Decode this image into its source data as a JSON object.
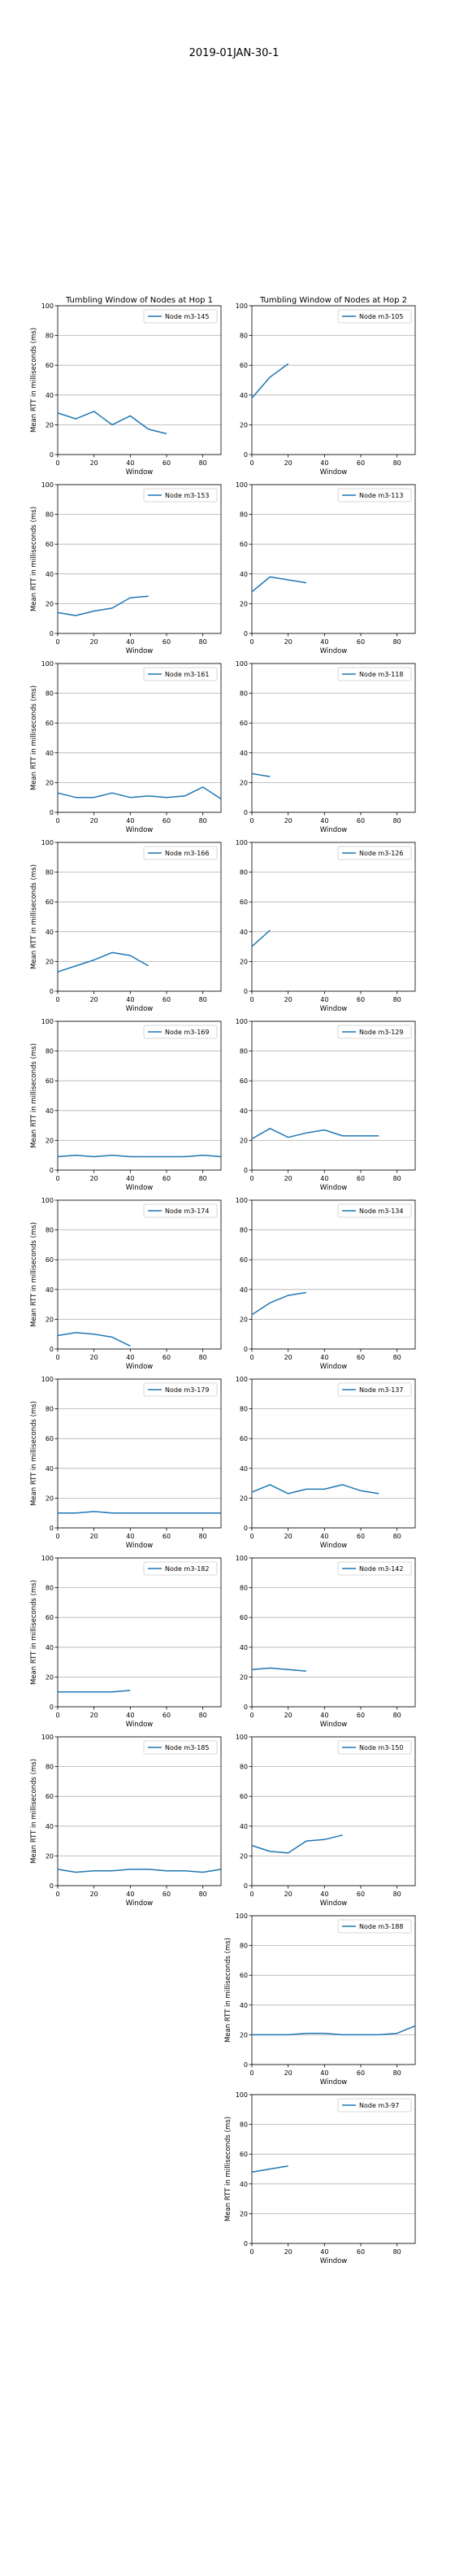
{
  "figure": {
    "title": "2019-01JAN-30-1"
  },
  "chart_data": [
    {
      "type": "line",
      "title": "Tumbling Window of Nodes at Hop 1",
      "xlabel": "Window",
      "ylabel": "Mean RTT in milliseconds (ms)",
      "xlim": [
        0,
        90
      ],
      "ylim": [
        0,
        100
      ],
      "xticks": [
        0,
        20,
        40,
        60,
        80
      ],
      "yticks": [
        0,
        20,
        40,
        60,
        80,
        100
      ],
      "grid": true,
      "legend": "upper right",
      "series": [
        {
          "name": "Node m3-145",
          "x": [
            0,
            10,
            20,
            30,
            40,
            50,
            60
          ],
          "y": [
            28,
            24,
            29,
            20,
            26,
            17,
            14
          ]
        }
      ]
    },
    {
      "type": "line",
      "title": "Tumbling Window of Nodes at Hop 2",
      "xlabel": "Window",
      "ylabel": "",
      "xlim": [
        0,
        90
      ],
      "ylim": [
        0,
        100
      ],
      "xticks": [
        0,
        20,
        40,
        60,
        80
      ],
      "yticks": [
        0,
        20,
        40,
        60,
        80,
        100
      ],
      "grid": true,
      "legend": "upper right",
      "series": [
        {
          "name": "Node m3-105",
          "x": [
            0,
            10,
            20
          ],
          "y": [
            38,
            52,
            61
          ]
        }
      ]
    },
    {
      "type": "line",
      "title": "",
      "xlabel": "Window",
      "ylabel": "Mean RTT in milliseconds (ms)",
      "xlim": [
        0,
        90
      ],
      "ylim": [
        0,
        100
      ],
      "xticks": [
        0,
        20,
        40,
        60,
        80
      ],
      "yticks": [
        0,
        20,
        40,
        60,
        80,
        100
      ],
      "grid": true,
      "legend": "upper right",
      "series": [
        {
          "name": "Node m3-153",
          "x": [
            0,
            10,
            20,
            30,
            40,
            50
          ],
          "y": [
            14,
            12,
            15,
            17,
            24,
            25
          ]
        }
      ]
    },
    {
      "type": "line",
      "title": "",
      "xlabel": "Window",
      "ylabel": "",
      "xlim": [
        0,
        90
      ],
      "ylim": [
        0,
        100
      ],
      "xticks": [
        0,
        20,
        40,
        60,
        80
      ],
      "yticks": [
        0,
        20,
        40,
        60,
        80,
        100
      ],
      "grid": true,
      "legend": "upper right",
      "series": [
        {
          "name": "Node m3-113",
          "x": [
            0,
            10,
            20,
            30
          ],
          "y": [
            28,
            38,
            36,
            34
          ]
        }
      ]
    },
    {
      "type": "line",
      "title": "",
      "xlabel": "Window",
      "ylabel": "Mean RTT in milliseconds (ms)",
      "xlim": [
        0,
        90
      ],
      "ylim": [
        0,
        100
      ],
      "xticks": [
        0,
        20,
        40,
        60,
        80
      ],
      "yticks": [
        0,
        20,
        40,
        60,
        80,
        100
      ],
      "grid": true,
      "legend": "upper right",
      "series": [
        {
          "name": "Node m3-161",
          "x": [
            0,
            10,
            20,
            30,
            40,
            50,
            60,
            70,
            80,
            90
          ],
          "y": [
            13,
            10,
            10,
            13,
            10,
            11,
            10,
            11,
            17,
            9
          ]
        }
      ]
    },
    {
      "type": "line",
      "title": "",
      "xlabel": "Window",
      "ylabel": "",
      "xlim": [
        0,
        90
      ],
      "ylim": [
        0,
        100
      ],
      "xticks": [
        0,
        20,
        40,
        60,
        80
      ],
      "yticks": [
        0,
        20,
        40,
        60,
        80,
        100
      ],
      "grid": true,
      "legend": "upper right",
      "series": [
        {
          "name": "Node m3-118",
          "x": [
            0,
            10
          ],
          "y": [
            26,
            24
          ]
        }
      ]
    },
    {
      "type": "line",
      "title": "",
      "xlabel": "Window",
      "ylabel": "Mean RTT in milliseconds (ms)",
      "xlim": [
        0,
        90
      ],
      "ylim": [
        0,
        100
      ],
      "xticks": [
        0,
        20,
        40,
        60,
        80
      ],
      "yticks": [
        0,
        20,
        40,
        60,
        80,
        100
      ],
      "grid": true,
      "legend": "upper right",
      "series": [
        {
          "name": "Node m3-166",
          "x": [
            0,
            10,
            20,
            30,
            40,
            50
          ],
          "y": [
            13,
            17,
            21,
            26,
            24,
            17
          ]
        }
      ]
    },
    {
      "type": "line",
      "title": "",
      "xlabel": "Window",
      "ylabel": "",
      "xlim": [
        0,
        90
      ],
      "ylim": [
        0,
        100
      ],
      "xticks": [
        0,
        20,
        40,
        60,
        80
      ],
      "yticks": [
        0,
        20,
        40,
        60,
        80,
        100
      ],
      "grid": true,
      "legend": "upper right",
      "series": [
        {
          "name": "Node m3-126",
          "x": [
            0,
            10
          ],
          "y": [
            30,
            41
          ]
        }
      ]
    },
    {
      "type": "line",
      "title": "",
      "xlabel": "Window",
      "ylabel": "Mean RTT in milliseconds (ms)",
      "xlim": [
        0,
        90
      ],
      "ylim": [
        0,
        100
      ],
      "xticks": [
        0,
        20,
        40,
        60,
        80
      ],
      "yticks": [
        0,
        20,
        40,
        60,
        80,
        100
      ],
      "grid": true,
      "legend": "upper right",
      "series": [
        {
          "name": "Node m3-169",
          "x": [
            0,
            10,
            20,
            30,
            40,
            50,
            60,
            70,
            80,
            90
          ],
          "y": [
            9,
            10,
            9,
            10,
            9,
            9,
            9,
            9,
            10,
            9
          ]
        }
      ]
    },
    {
      "type": "line",
      "title": "",
      "xlabel": "Window",
      "ylabel": "",
      "xlim": [
        0,
        90
      ],
      "ylim": [
        0,
        100
      ],
      "xticks": [
        0,
        20,
        40,
        60,
        80
      ],
      "yticks": [
        0,
        20,
        40,
        60,
        80,
        100
      ],
      "grid": true,
      "legend": "upper right",
      "series": [
        {
          "name": "Node m3-129",
          "x": [
            0,
            10,
            20,
            30,
            40,
            50,
            60,
            70
          ],
          "y": [
            21,
            28,
            22,
            25,
            27,
            23,
            23,
            23
          ]
        }
      ]
    },
    {
      "type": "line",
      "title": "",
      "xlabel": "Window",
      "ylabel": "Mean RTT in milliseconds (ms)",
      "xlim": [
        0,
        90
      ],
      "ylim": [
        0,
        100
      ],
      "xticks": [
        0,
        20,
        40,
        60,
        80
      ],
      "yticks": [
        0,
        20,
        40,
        60,
        80,
        100
      ],
      "grid": true,
      "legend": "upper right",
      "series": [
        {
          "name": "Node m3-174",
          "x": [
            0,
            10,
            20,
            30,
            40
          ],
          "y": [
            9,
            11,
            10,
            8,
            2
          ]
        }
      ]
    },
    {
      "type": "line",
      "title": "",
      "xlabel": "Window",
      "ylabel": "",
      "xlim": [
        0,
        90
      ],
      "ylim": [
        0,
        100
      ],
      "xticks": [
        0,
        20,
        40,
        60,
        80
      ],
      "yticks": [
        0,
        20,
        40,
        60,
        80,
        100
      ],
      "grid": true,
      "legend": "upper right",
      "series": [
        {
          "name": "Node m3-134",
          "x": [
            0,
            10,
            20,
            30
          ],
          "y": [
            23,
            31,
            36,
            38
          ]
        }
      ]
    },
    {
      "type": "line",
      "title": "",
      "xlabel": "Window",
      "ylabel": "Mean RTT in milliseconds (ms)",
      "xlim": [
        0,
        90
      ],
      "ylim": [
        0,
        100
      ],
      "xticks": [
        0,
        20,
        40,
        60,
        80
      ],
      "yticks": [
        0,
        20,
        40,
        60,
        80,
        100
      ],
      "grid": true,
      "legend": "upper right",
      "series": [
        {
          "name": "Node m3-179",
          "x": [
            0,
            10,
            20,
            30,
            40,
            50,
            60,
            70,
            80,
            90
          ],
          "y": [
            10,
            10,
            11,
            10,
            10,
            10,
            10,
            10,
            10,
            10
          ]
        }
      ]
    },
    {
      "type": "line",
      "title": "",
      "xlabel": "Window",
      "ylabel": "",
      "xlim": [
        0,
        90
      ],
      "ylim": [
        0,
        100
      ],
      "xticks": [
        0,
        20,
        40,
        60,
        80
      ],
      "yticks": [
        0,
        20,
        40,
        60,
        80,
        100
      ],
      "grid": true,
      "legend": "upper right",
      "series": [
        {
          "name": "Node m3-137",
          "x": [
            0,
            10,
            20,
            30,
            40,
            50,
            60,
            70
          ],
          "y": [
            24,
            29,
            23,
            26,
            26,
            29,
            25,
            23
          ]
        }
      ]
    },
    {
      "type": "line",
      "title": "",
      "xlabel": "Window",
      "ylabel": "Mean RTT in milliseconds (ms)",
      "xlim": [
        0,
        90
      ],
      "ylim": [
        0,
        100
      ],
      "xticks": [
        0,
        20,
        40,
        60,
        80
      ],
      "yticks": [
        0,
        20,
        40,
        60,
        80,
        100
      ],
      "grid": true,
      "legend": "upper right",
      "series": [
        {
          "name": "Node m3-182",
          "x": [
            0,
            10,
            20,
            30,
            40
          ],
          "y": [
            10,
            10,
            10,
            10,
            11
          ]
        }
      ]
    },
    {
      "type": "line",
      "title": "",
      "xlabel": "Window",
      "ylabel": "",
      "xlim": [
        0,
        90
      ],
      "ylim": [
        0,
        100
      ],
      "xticks": [
        0,
        20,
        40,
        60,
        80
      ],
      "yticks": [
        0,
        20,
        40,
        60,
        80,
        100
      ],
      "grid": true,
      "legend": "upper right",
      "series": [
        {
          "name": "Node m3-142",
          "x": [
            0,
            10,
            20,
            30
          ],
          "y": [
            25,
            26,
            25,
            24
          ]
        }
      ]
    },
    {
      "type": "line",
      "title": "",
      "xlabel": "Window",
      "ylabel": "Mean RTT in milliseconds (ms)",
      "xlim": [
        0,
        90
      ],
      "ylim": [
        0,
        100
      ],
      "xticks": [
        0,
        20,
        40,
        60,
        80
      ],
      "yticks": [
        0,
        20,
        40,
        60,
        80,
        100
      ],
      "grid": true,
      "legend": "upper right",
      "series": [
        {
          "name": "Node m3-185",
          "x": [
            0,
            10,
            20,
            30,
            40,
            50,
            60,
            70,
            80,
            90
          ],
          "y": [
            11,
            9,
            10,
            10,
            11,
            11,
            10,
            10,
            9,
            11
          ]
        }
      ]
    },
    {
      "type": "line",
      "title": "",
      "xlabel": "Window",
      "ylabel": "",
      "xlim": [
        0,
        90
      ],
      "ylim": [
        0,
        100
      ],
      "xticks": [
        0,
        20,
        40,
        60,
        80
      ],
      "yticks": [
        0,
        20,
        40,
        60,
        80,
        100
      ],
      "grid": true,
      "legend": "upper right",
      "series": [
        {
          "name": "Node m3-150",
          "x": [
            0,
            10,
            20,
            30,
            40,
            50
          ],
          "y": [
            27,
            23,
            22,
            30,
            31,
            34
          ]
        }
      ]
    },
    {
      "type": "line",
      "title": "",
      "xlabel": "Window",
      "ylabel": "Mean RTT in milliseconds (ms)",
      "xlim": [
        0,
        90
      ],
      "ylim": [
        0,
        100
      ],
      "xticks": [
        0,
        20,
        40,
        60,
        80
      ],
      "yticks": [
        0,
        20,
        40,
        60,
        80,
        100
      ],
      "grid": true,
      "legend": "upper right",
      "series": [
        {
          "name": "Node m3-188",
          "x": [
            0,
            10,
            20,
            30,
            40,
            50,
            60,
            70,
            80,
            90
          ],
          "y": [
            20,
            20,
            20,
            21,
            21,
            20,
            20,
            20,
            21,
            26
          ]
        }
      ]
    },
    {
      "type": "line",
      "title": "",
      "xlabel": "Window",
      "ylabel": "Mean RTT in milliseconds (ms)",
      "xlim": [
        0,
        90
      ],
      "ylim": [
        0,
        100
      ],
      "xticks": [
        0,
        20,
        40,
        60,
        80
      ],
      "yticks": [
        0,
        20,
        40,
        60,
        80,
        100
      ],
      "grid": true,
      "legend": "upper right",
      "series": [
        {
          "name": "Node m3-97",
          "x": [
            0,
            10,
            20
          ],
          "y": [
            48,
            50,
            52
          ]
        }
      ]
    }
  ],
  "colors": {
    "line": "#1f77b4",
    "grid": "#b0b0b0",
    "axis": "#000000"
  }
}
